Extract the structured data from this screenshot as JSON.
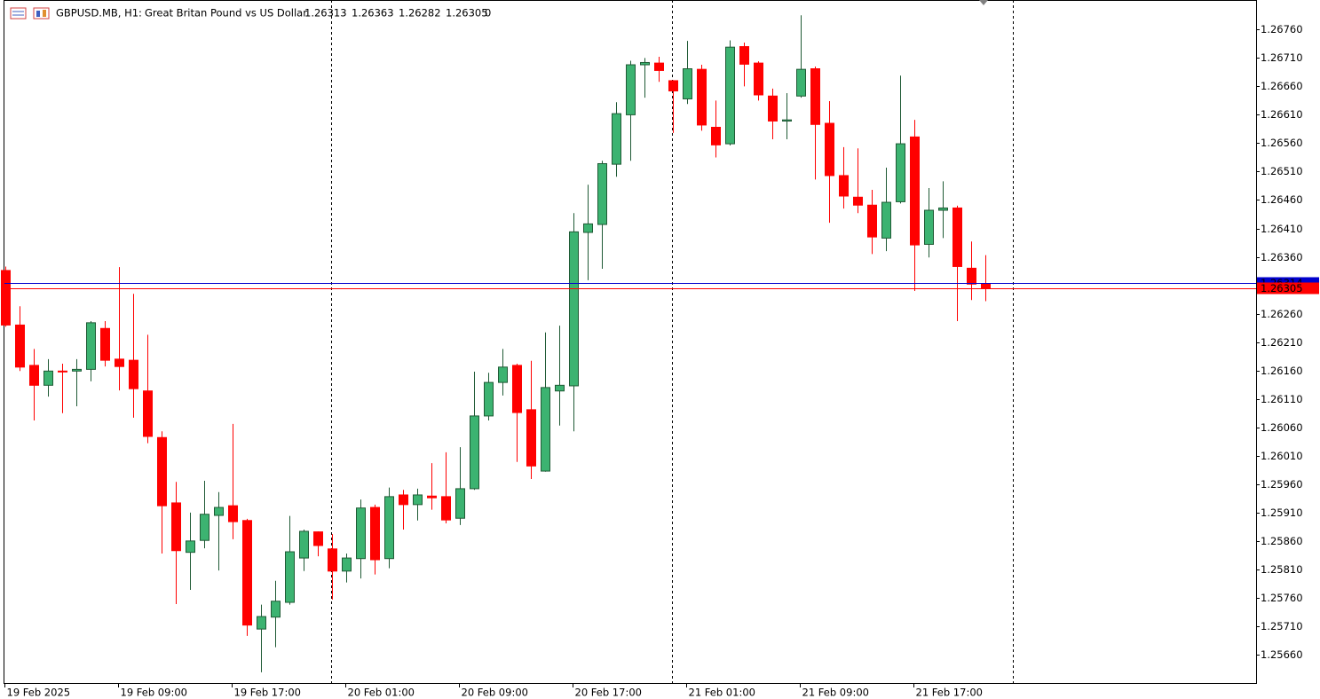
{
  "header": {
    "symbol": "GBPUSD.MB, H1:",
    "description": "Great Britan Pound vs US Dollar",
    "volume": 0
  },
  "chart_data": {
    "type": "candlestick",
    "categories": [
      "19 Feb 2025",
      null,
      null,
      null,
      null,
      null,
      null,
      null,
      "19 Feb 09:00",
      null,
      null,
      null,
      null,
      null,
      null,
      null,
      "19 Feb 17:00",
      null,
      null,
      null,
      null,
      null,
      null,
      null,
      "20 Feb 01:00",
      null,
      null,
      null,
      null,
      null,
      null,
      null,
      "20 Feb 09:00",
      null,
      null,
      null,
      null,
      null,
      null,
      null,
      "20 Feb 17:00",
      null,
      null,
      null,
      null,
      null,
      null,
      null,
      "21 Feb 01:00",
      null,
      null,
      null,
      null,
      null,
      null,
      null,
      "21 Feb 09:00",
      null,
      null,
      null,
      null,
      null,
      null,
      null,
      "21 Feb 17:00",
      null,
      null,
      null,
      null,
      null
    ],
    "open": [
      1.26336,
      1.2624,
      1.26169,
      1.26134,
      1.26159,
      1.26159,
      1.26162,
      1.26234,
      1.2618,
      1.26178,
      1.26124,
      1.26042,
      1.25927,
      1.2584,
      1.25861,
      1.25905,
      1.25922,
      1.25896,
      1.25705,
      1.25726,
      1.25752,
      1.2583,
      1.25876,
      1.25846,
      1.25807,
      1.25829,
      1.25919,
      1.25829,
      1.25941,
      1.25924,
      1.25939,
      1.25938,
      1.259,
      1.25952,
      1.2608,
      1.26139,
      1.26169,
      1.26091,
      1.25983,
      1.26124,
      1.26133,
      1.26403,
      1.26417,
      1.26523,
      1.2661,
      1.26698,
      1.26701,
      1.2667,
      1.26638,
      1.2669,
      1.26588,
      1.26559,
      1.2673,
      1.26701,
      1.26643,
      1.26599,
      1.26643,
      1.26691,
      1.26595,
      1.26503,
      1.26465,
      1.26451,
      1.26393,
      1.26457,
      1.26571,
      1.26382,
      1.26442,
      1.26446,
      1.2634,
      1.26313
    ],
    "high": [
      1.26343,
      1.26273,
      1.26198,
      1.2618,
      1.26172,
      1.2618,
      1.26247,
      1.26247,
      1.26342,
      1.26295,
      1.26223,
      1.26053,
      1.25964,
      1.2591,
      1.25966,
      1.25946,
      1.26066,
      1.25899,
      1.25748,
      1.2579,
      1.25904,
      1.2588,
      1.25877,
      1.25872,
      1.25838,
      1.25933,
      1.25924,
      1.25954,
      1.2595,
      1.25952,
      1.25997,
      1.26016,
      1.26025,
      1.26158,
      1.26156,
      1.26198,
      1.26172,
      1.26177,
      1.26227,
      1.26239,
      1.26437,
      1.26487,
      1.26529,
      1.26632,
      1.26705,
      1.2671,
      1.26712,
      1.26671,
      1.2674,
      1.26698,
      1.26635,
      1.26741,
      1.26737,
      1.26704,
      1.26656,
      1.26648,
      1.26785,
      1.26695,
      1.26634,
      1.26553,
      1.26551,
      1.26478,
      1.26517,
      1.26679,
      1.26601,
      1.26481,
      1.26493,
      1.2645,
      1.26387,
      1.26363
    ],
    "low": [
      1.26237,
      1.26159,
      1.26072,
      1.26114,
      1.26085,
      1.26097,
      1.26141,
      1.26167,
      1.26125,
      1.26077,
      1.26032,
      1.25838,
      1.25749,
      1.25774,
      1.25847,
      1.25808,
      1.25863,
      1.25693,
      1.25629,
      1.25673,
      1.25748,
      1.25807,
      1.25833,
      1.25757,
      1.25787,
      1.25794,
      1.25801,
      1.25812,
      1.2588,
      1.25896,
      1.25915,
      1.25891,
      1.25888,
      1.2595,
      1.26072,
      1.26116,
      1.25999,
      1.25969,
      1.25982,
      1.26063,
      1.26053,
      1.26319,
      1.26339,
      1.26501,
      1.26529,
      1.2664,
      1.26668,
      1.26578,
      1.26629,
      1.26582,
      1.26535,
      1.26556,
      1.2666,
      1.26635,
      1.26567,
      1.26567,
      1.2664,
      1.26496,
      1.2642,
      1.26445,
      1.26437,
      1.26365,
      1.2637,
      1.26454,
      1.263,
      1.26359,
      1.26393,
      1.26247,
      1.26284,
      1.26282
    ],
    "close": [
      1.2624,
      1.26166,
      1.26134,
      1.26159,
      1.26158,
      1.26162,
      1.26244,
      1.26178,
      1.26167,
      1.26128,
      1.26044,
      1.25922,
      1.25843,
      1.2586,
      1.25907,
      1.25919,
      1.25894,
      1.25712,
      1.25727,
      1.25754,
      1.25841,
      1.25877,
      1.25852,
      1.25807,
      1.2583,
      1.25918,
      1.25827,
      1.25938,
      1.25924,
      1.25941,
      1.25936,
      1.25897,
      1.25952,
      1.2608,
      1.26139,
      1.26166,
      1.26086,
      1.25992,
      1.2613,
      1.26134,
      1.26404,
      1.26418,
      1.26524,
      1.26612,
      1.26698,
      1.26702,
      1.26688,
      1.26652,
      1.26691,
      1.26592,
      1.26557,
      1.26729,
      1.26699,
      1.26645,
      1.26599,
      1.26601,
      1.2669,
      1.26593,
      1.26503,
      1.26467,
      1.26451,
      1.26395,
      1.26456,
      1.26559,
      1.26381,
      1.26442,
      1.26446,
      1.26343,
      1.26312,
      1.26305
    ],
    "up_color": "#3cb371",
    "up_border": "#1f5a35",
    "down_color": "#ff0000",
    "ylim": [
      1.2561,
      1.26812
    ],
    "yticks": [
      {
        "value": 1.2676,
        "label": "1.26760"
      },
      {
        "value": 1.2671,
        "label": "1.26710"
      },
      {
        "value": 1.2666,
        "label": "1.26660"
      },
      {
        "value": 1.2661,
        "label": "1.26610"
      },
      {
        "value": 1.2656,
        "label": "1.26560"
      },
      {
        "value": 1.2651,
        "label": "1.26510"
      },
      {
        "value": 1.2646,
        "label": "1.26460"
      },
      {
        "value": 1.2641,
        "label": "1.26410"
      },
      {
        "value": 1.2636,
        "label": "1.26360"
      },
      {
        "value": 1.2631,
        "label": "1.26310"
      },
      {
        "value": 1.2626,
        "label": "1.26260"
      },
      {
        "value": 1.2621,
        "label": "1.26210"
      },
      {
        "value": 1.2616,
        "label": "1.26160"
      },
      {
        "value": 1.2611,
        "label": "1.26110"
      },
      {
        "value": 1.2606,
        "label": "1.26060"
      },
      {
        "value": 1.2601,
        "label": "1.26010"
      },
      {
        "value": 1.2596,
        "label": "1.25960"
      },
      {
        "value": 1.2591,
        "label": "1.25910"
      },
      {
        "value": 1.2586,
        "label": "1.25860"
      },
      {
        "value": 1.2581,
        "label": "1.25810"
      },
      {
        "value": 1.2576,
        "label": "1.25760"
      },
      {
        "value": 1.2571,
        "label": "1.25710"
      },
      {
        "value": 1.2566,
        "label": "1.25660"
      }
    ],
    "ask_line": {
      "value": 1.26314,
      "label": "1.26314",
      "color": "#0000cd"
    },
    "bid_line": {
      "value": 1.26305,
      "label": "1.26305",
      "color": "#ff0000"
    },
    "period_separators": [
      23,
      47,
      71
    ],
    "grid": false
  }
}
